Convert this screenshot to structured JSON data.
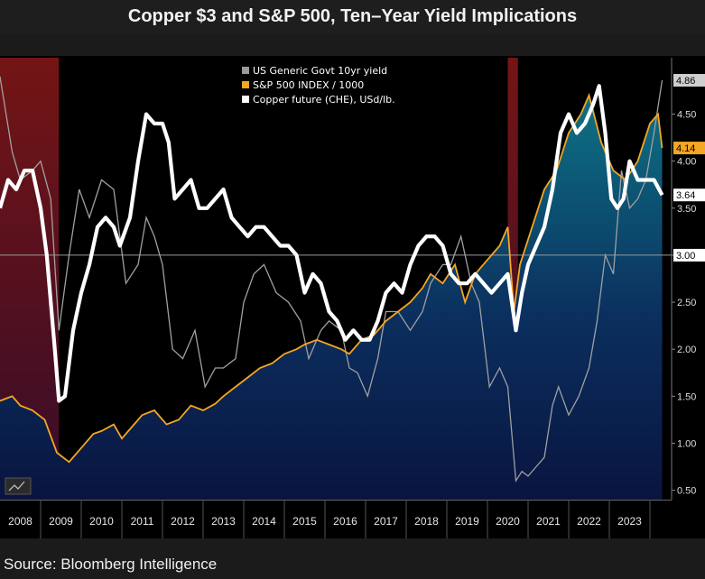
{
  "title": "Copper $3 and S&P 500, Ten–Year Yield Implications",
  "source": "Source: Bloomberg Intelligence",
  "colors": {
    "yield": "#9a9a9a",
    "spx": "#f5a623",
    "copper": "#ffffff",
    "recession": "#8b1a1a",
    "area_top": "#0e6f82",
    "area_bottom": "#0a1440"
  },
  "chart_data": {
    "type": "line",
    "title": "Copper $3 and S&P 500, Ten–Year Yield Implications",
    "ylim": [
      0.4,
      5.1
    ],
    "xlim": [
      2007.5,
      2023.9
    ],
    "y_ticks": [
      "0.50",
      "1.00",
      "1.50",
      "2.00",
      "2.50",
      "3.00",
      "3.50",
      "4.00",
      "4.50"
    ],
    "x_ticks": [
      "2008",
      "2009",
      "2010",
      "2011",
      "2012",
      "2013",
      "2014",
      "2015",
      "2016",
      "2017",
      "2018",
      "2019",
      "2020",
      "2021",
      "2022",
      "2023"
    ],
    "reference_line": {
      "value": 3.0,
      "label": "3.00"
    },
    "recessions": [
      [
        2007.5,
        2008.95
      ],
      [
        2020.0,
        2020.25
      ]
    ],
    "last_value_labels": [
      {
        "series": "US Generic Govt 10yr yield",
        "label": "4.86"
      },
      {
        "series": "S&P 500 INDEX / 1000",
        "label": "4.14"
      },
      {
        "series": "Copper future (CHE), USd/lb.",
        "label": "3.64"
      }
    ],
    "series": [
      {
        "name": "US Generic Govt 10yr yield",
        "x": [
          2007.5,
          2007.8,
          2008.0,
          2008.3,
          2008.5,
          2008.75,
          2008.95,
          2009.2,
          2009.45,
          2009.7,
          2010.0,
          2010.3,
          2010.6,
          2010.9,
          2011.1,
          2011.3,
          2011.5,
          2011.75,
          2012.0,
          2012.3,
          2012.55,
          2012.8,
          2013.0,
          2013.3,
          2013.5,
          2013.75,
          2014.0,
          2014.3,
          2014.6,
          2014.9,
          2015.1,
          2015.4,
          2015.6,
          2015.9,
          2016.1,
          2016.3,
          2016.55,
          2016.8,
          2017.0,
          2017.3,
          2017.6,
          2017.9,
          2018.1,
          2018.4,
          2018.6,
          2018.85,
          2019.1,
          2019.3,
          2019.55,
          2019.8,
          2020.0,
          2020.1,
          2020.2,
          2020.35,
          2020.5,
          2020.7,
          2020.9,
          2021.1,
          2021.25,
          2021.5,
          2021.75,
          2022.0,
          2022.2,
          2022.4,
          2022.6,
          2022.8,
          2023.0,
          2023.2,
          2023.4,
          2023.6,
          2023.8
        ],
        "values": [
          4.9,
          4.1,
          3.8,
          3.9,
          4.0,
          3.6,
          2.2,
          3.0,
          3.7,
          3.4,
          3.8,
          3.7,
          2.7,
          2.9,
          3.4,
          3.2,
          2.9,
          2.0,
          1.9,
          2.2,
          1.6,
          1.8,
          1.8,
          1.9,
          2.5,
          2.8,
          2.9,
          2.6,
          2.5,
          2.3,
          1.9,
          2.2,
          2.3,
          2.2,
          1.8,
          1.75,
          1.5,
          1.9,
          2.4,
          2.4,
          2.2,
          2.4,
          2.7,
          2.9,
          2.9,
          3.2,
          2.7,
          2.5,
          1.6,
          1.8,
          1.6,
          1.1,
          0.6,
          0.7,
          0.65,
          0.75,
          0.85,
          1.4,
          1.6,
          1.3,
          1.5,
          1.8,
          2.3,
          3.0,
          2.8,
          3.9,
          3.5,
          3.6,
          3.8,
          4.3,
          4.86
        ]
      },
      {
        "name": "S&P 500 INDEX / 1000",
        "x": [
          2007.5,
          2007.8,
          2008.0,
          2008.3,
          2008.6,
          2008.9,
          2009.2,
          2009.5,
          2009.8,
          2010.0,
          2010.3,
          2010.5,
          2010.8,
          2011.0,
          2011.3,
          2011.6,
          2011.9,
          2012.2,
          2012.5,
          2012.8,
          2013.0,
          2013.3,
          2013.6,
          2013.9,
          2014.2,
          2014.5,
          2014.8,
          2015.0,
          2015.3,
          2015.6,
          2015.9,
          2016.1,
          2016.4,
          2016.7,
          2017.0,
          2017.3,
          2017.6,
          2017.9,
          2018.1,
          2018.4,
          2018.7,
          2018.95,
          2019.2,
          2019.5,
          2019.8,
          2020.0,
          2020.15,
          2020.3,
          2020.6,
          2020.9,
          2021.2,
          2021.5,
          2021.8,
          2022.0,
          2022.3,
          2022.6,
          2022.9,
          2023.2,
          2023.5,
          2023.7,
          2023.8
        ],
        "values": [
          1.45,
          1.5,
          1.4,
          1.35,
          1.25,
          0.9,
          0.8,
          0.95,
          1.1,
          1.13,
          1.2,
          1.05,
          1.2,
          1.3,
          1.35,
          1.2,
          1.25,
          1.4,
          1.35,
          1.42,
          1.5,
          1.6,
          1.7,
          1.8,
          1.85,
          1.95,
          2.0,
          2.05,
          2.1,
          2.05,
          2.0,
          1.95,
          2.1,
          2.15,
          2.3,
          2.4,
          2.5,
          2.65,
          2.8,
          2.7,
          2.9,
          2.5,
          2.8,
          2.95,
          3.1,
          3.3,
          2.4,
          2.9,
          3.3,
          3.7,
          3.9,
          4.3,
          4.5,
          4.7,
          4.2,
          3.9,
          3.8,
          4.0,
          4.4,
          4.5,
          4.14
        ]
      },
      {
        "name": "Copper future (CHE), USd/lb.",
        "x": [
          2007.5,
          2007.7,
          2007.9,
          2008.1,
          2008.3,
          2008.5,
          2008.65,
          2008.85,
          2008.95,
          2009.1,
          2009.3,
          2009.5,
          2009.7,
          2009.9,
          2010.1,
          2010.3,
          2010.45,
          2010.7,
          2010.9,
          2011.1,
          2011.3,
          2011.5,
          2011.65,
          2011.8,
          2012.0,
          2012.2,
          2012.4,
          2012.6,
          2012.8,
          2013.0,
          2013.2,
          2013.4,
          2013.6,
          2013.8,
          2014.0,
          2014.2,
          2014.4,
          2014.6,
          2014.8,
          2015.0,
          2015.2,
          2015.4,
          2015.6,
          2015.8,
          2016.0,
          2016.2,
          2016.4,
          2016.6,
          2016.8,
          2017.0,
          2017.2,
          2017.4,
          2017.6,
          2017.8,
          2018.0,
          2018.2,
          2018.4,
          2018.6,
          2018.8,
          2019.0,
          2019.2,
          2019.4,
          2019.6,
          2019.8,
          2020.0,
          2020.1,
          2020.2,
          2020.35,
          2020.5,
          2020.7,
          2020.9,
          2021.1,
          2021.3,
          2021.5,
          2021.7,
          2021.9,
          2022.1,
          2022.25,
          2022.4,
          2022.55,
          2022.7,
          2022.85,
          2023.0,
          2023.2,
          2023.4,
          2023.6,
          2023.8
        ],
        "values": [
          3.5,
          3.8,
          3.7,
          3.9,
          3.9,
          3.5,
          3.0,
          2.0,
          1.45,
          1.5,
          2.2,
          2.6,
          2.9,
          3.3,
          3.4,
          3.3,
          3.1,
          3.4,
          4.0,
          4.5,
          4.4,
          4.4,
          4.2,
          3.6,
          3.7,
          3.8,
          3.5,
          3.5,
          3.6,
          3.7,
          3.4,
          3.3,
          3.2,
          3.3,
          3.3,
          3.2,
          3.1,
          3.1,
          3.0,
          2.6,
          2.8,
          2.7,
          2.4,
          2.3,
          2.1,
          2.2,
          2.1,
          2.1,
          2.3,
          2.6,
          2.7,
          2.6,
          2.9,
          3.1,
          3.2,
          3.2,
          3.1,
          2.8,
          2.7,
          2.7,
          2.8,
          2.7,
          2.6,
          2.7,
          2.8,
          2.5,
          2.2,
          2.6,
          2.9,
          3.1,
          3.3,
          3.7,
          4.3,
          4.5,
          4.3,
          4.4,
          4.6,
          4.8,
          4.3,
          3.6,
          3.5,
          3.6,
          4.0,
          3.8,
          3.8,
          3.8,
          3.64
        ]
      }
    ]
  }
}
